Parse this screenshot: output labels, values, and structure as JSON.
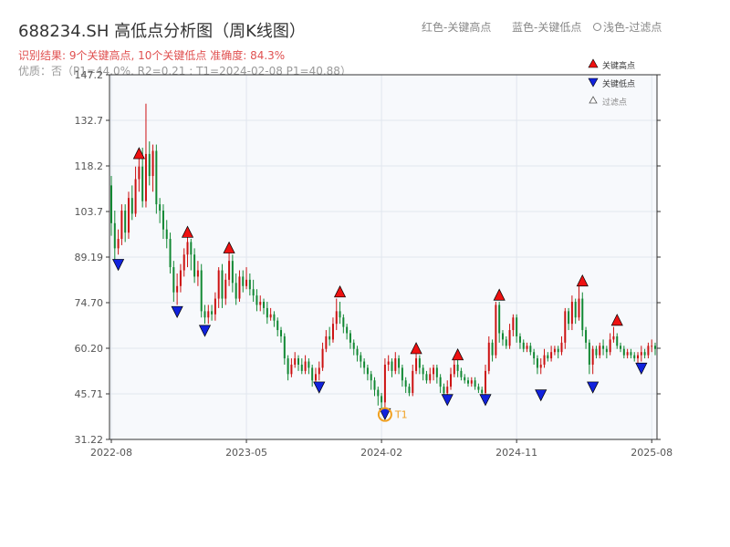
{
  "header": {
    "title": "688234.SH 高低点分析图（周K线图）",
    "legend_red": "红色-关键高点",
    "legend_blue": "蓝色-关键低点",
    "legend_light": "浅色-过滤点",
    "result_line": "识别结果: 9个关键高点, 10个关键低点   准确度: 84.3%",
    "quality_line": "优质：否（P1=44.0%, R2=0.21 ; T1=2024-02-08 P1=40.88）"
  },
  "colors": {
    "up": "#cc1111",
    "down": "#118833",
    "high_marker": "#ee1111",
    "low_marker": "#1122dd",
    "t1": "#f0a020",
    "plot_bg": "#f7f9fc",
    "grid": "#e1e6ee",
    "axis": "#333333"
  },
  "chart_data": {
    "type": "candlestick",
    "y_ticks": [
      "31.22",
      "45.71",
      "60.20",
      "74.70",
      "89.19",
      "103.7",
      "118.2",
      "132.7",
      "147.2"
    ],
    "x_ticks": [
      "2022-08",
      "2023-05",
      "2024-02",
      "2024-11",
      "2025-08"
    ],
    "ylim": [
      31.22,
      147.2
    ],
    "xlim_weeks": [
      0,
      157
    ],
    "legend": {
      "high": "关键高点",
      "low": "关键低点",
      "filtered": "过滤点"
    },
    "t1_label": "T1",
    "t1": {
      "week": 79,
      "value": 40.88
    },
    "key_highs": [
      {
        "week": 8,
        "value": 120.5
      },
      {
        "week": 22,
        "value": 95.5
      },
      {
        "week": 34,
        "value": 90.5
      },
      {
        "week": 66,
        "value": 76.5
      },
      {
        "week": 88,
        "value": 58.5
      },
      {
        "week": 100,
        "value": 56.5
      },
      {
        "week": 112,
        "value": 75.5
      },
      {
        "week": 136,
        "value": 80.0
      },
      {
        "week": 146,
        "value": 67.5
      }
    ],
    "key_lows": [
      {
        "week": 2,
        "value": 88.5
      },
      {
        "week": 19,
        "value": 73.5
      },
      {
        "week": 27,
        "value": 67.5
      },
      {
        "week": 60,
        "value": 49.5
      },
      {
        "week": 79,
        "value": 41.0
      },
      {
        "week": 97,
        "value": 45.5
      },
      {
        "week": 108,
        "value": 45.5
      },
      {
        "week": 124,
        "value": 47.0
      },
      {
        "week": 139,
        "value": 49.5
      },
      {
        "week": 153,
        "value": 55.5
      }
    ],
    "candles": [
      [
        0,
        112,
        100,
        115,
        96
      ],
      [
        1,
        100,
        92,
        104,
        88
      ],
      [
        2,
        92,
        95,
        98,
        90
      ],
      [
        3,
        95,
        104,
        106,
        93
      ],
      [
        4,
        104,
        97,
        106,
        94
      ],
      [
        5,
        97,
        108,
        110,
        95
      ],
      [
        6,
        108,
        103,
        112,
        101
      ],
      [
        7,
        103,
        114,
        118,
        102
      ],
      [
        8,
        114,
        118,
        121,
        110
      ],
      [
        9,
        118,
        107,
        124,
        105
      ],
      [
        10,
        107,
        122,
        138,
        105
      ],
      [
        11,
        122,
        115,
        126,
        112
      ],
      [
        12,
        115,
        123,
        125,
        110
      ],
      [
        13,
        123,
        106,
        125,
        103
      ],
      [
        14,
        106,
        104,
        108,
        100
      ],
      [
        15,
        104,
        98,
        106,
        95
      ],
      [
        16,
        98,
        95,
        101,
        92
      ],
      [
        17,
        95,
        86,
        97,
        84
      ],
      [
        18,
        86,
        78,
        88,
        75
      ],
      [
        19,
        78,
        80,
        84,
        74
      ],
      [
        20,
        80,
        85,
        87,
        78
      ],
      [
        21,
        85,
        90,
        92,
        83
      ],
      [
        22,
        90,
        94,
        96,
        86
      ],
      [
        23,
        94,
        90,
        95,
        85
      ],
      [
        24,
        90,
        83,
        92,
        81
      ],
      [
        25,
        83,
        85,
        88,
        80
      ],
      [
        26,
        85,
        72,
        87,
        70
      ],
      [
        27,
        72,
        70,
        74,
        68
      ],
      [
        28,
        70,
        72,
        74,
        68
      ],
      [
        29,
        72,
        71,
        74,
        69
      ],
      [
        30,
        71,
        76,
        78,
        69
      ],
      [
        31,
        76,
        85,
        86,
        73
      ],
      [
        32,
        85,
        76,
        87,
        73
      ],
      [
        33,
        76,
        82,
        84,
        74
      ],
      [
        34,
        82,
        88,
        91,
        80
      ],
      [
        35,
        88,
        81,
        90,
        78
      ],
      [
        36,
        81,
        76,
        84,
        74
      ],
      [
        37,
        76,
        83,
        85,
        75
      ],
      [
        38,
        83,
        80,
        85,
        78
      ],
      [
        39,
        80,
        82,
        86,
        79
      ],
      [
        40,
        82,
        79,
        84,
        77
      ],
      [
        41,
        79,
        77,
        82,
        75
      ],
      [
        42,
        77,
        74,
        79,
        72
      ],
      [
        43,
        74,
        75,
        77,
        72
      ],
      [
        44,
        75,
        73,
        76,
        71
      ],
      [
        45,
        73,
        70,
        75,
        68
      ],
      [
        46,
        70,
        71,
        73,
        69
      ],
      [
        47,
        71,
        69,
        72,
        67
      ],
      [
        48,
        69,
        66,
        70,
        64
      ],
      [
        49,
        66,
        64,
        67,
        62
      ],
      [
        50,
        64,
        57,
        65,
        55
      ],
      [
        51,
        57,
        52,
        58,
        50
      ],
      [
        52,
        52,
        55,
        57,
        51
      ],
      [
        53,
        55,
        57,
        59,
        54
      ],
      [
        54,
        57,
        55,
        58,
        53
      ],
      [
        55,
        55,
        53,
        57,
        52
      ],
      [
        56,
        53,
        56,
        58,
        52
      ],
      [
        57,
        56,
        54,
        57,
        52
      ],
      [
        58,
        54,
        50,
        55,
        48
      ],
      [
        59,
        50,
        52,
        54,
        49
      ],
      [
        60,
        52,
        54,
        56,
        50
      ],
      [
        61,
        54,
        60,
        62,
        53
      ],
      [
        62,
        60,
        64,
        66,
        59
      ],
      [
        63,
        64,
        63,
        67,
        61
      ],
      [
        64,
        63,
        68,
        70,
        62
      ],
      [
        65,
        68,
        72,
        76,
        66
      ],
      [
        66,
        72,
        70,
        75,
        68
      ],
      [
        67,
        70,
        67,
        71,
        65
      ],
      [
        68,
        67,
        65,
        68,
        63
      ],
      [
        69,
        65,
        62,
        66,
        60
      ],
      [
        70,
        62,
        60,
        63,
        58
      ],
      [
        71,
        60,
        58,
        61,
        56
      ],
      [
        72,
        58,
        56,
        59,
        54
      ],
      [
        73,
        56,
        54,
        57,
        52
      ],
      [
        74,
        54,
        52,
        55,
        50
      ],
      [
        75,
        52,
        50,
        53,
        47
      ],
      [
        76,
        50,
        47,
        51,
        45
      ],
      [
        77,
        47,
        45,
        48,
        42
      ],
      [
        78,
        45,
        43,
        46,
        41
      ],
      [
        79,
        43,
        55,
        57,
        41
      ],
      [
        80,
        55,
        56,
        58,
        53
      ],
      [
        81,
        56,
        53,
        57,
        51
      ],
      [
        82,
        53,
        57,
        59,
        52
      ],
      [
        83,
        57,
        54,
        58,
        52
      ],
      [
        84,
        54,
        50,
        55,
        48
      ],
      [
        85,
        50,
        48,
        51,
        46
      ],
      [
        86,
        48,
        46,
        49,
        45
      ],
      [
        87,
        46,
        53,
        55,
        45
      ],
      [
        88,
        53,
        57,
        59,
        52
      ],
      [
        89,
        57,
        54,
        58,
        52
      ],
      [
        90,
        54,
        52,
        55,
        50
      ],
      [
        91,
        52,
        50,
        53,
        49
      ],
      [
        92,
        50,
        52,
        54,
        49
      ],
      [
        93,
        52,
        54,
        55,
        50
      ],
      [
        94,
        54,
        51,
        55,
        49
      ],
      [
        95,
        51,
        48,
        52,
        46
      ],
      [
        96,
        48,
        46,
        49,
        45
      ],
      [
        97,
        46,
        48,
        50,
        45
      ],
      [
        98,
        48,
        52,
        54,
        47
      ],
      [
        99,
        52,
        55,
        57,
        51
      ],
      [
        100,
        55,
        53,
        57,
        51
      ],
      [
        101,
        53,
        51,
        54,
        50
      ],
      [
        102,
        51,
        50,
        52,
        49
      ],
      [
        103,
        50,
        49,
        51,
        48
      ],
      [
        104,
        49,
        50,
        51,
        48
      ],
      [
        105,
        50,
        48,
        51,
        47
      ],
      [
        106,
        48,
        47,
        49,
        46
      ],
      [
        107,
        47,
        46,
        48,
        45
      ],
      [
        108,
        46,
        53,
        55,
        45
      ],
      [
        109,
        53,
        62,
        64,
        52
      ],
      [
        110,
        62,
        58,
        63,
        56
      ],
      [
        111,
        58,
        74,
        75,
        57
      ],
      [
        112,
        74,
        65,
        75,
        62
      ],
      [
        113,
        65,
        63,
        66,
        61
      ],
      [
        114,
        63,
        61,
        64,
        60
      ],
      [
        115,
        61,
        66,
        68,
        60
      ],
      [
        116,
        66,
        70,
        71,
        64
      ],
      [
        117,
        70,
        64,
        71,
        62
      ],
      [
        118,
        64,
        62,
        65,
        60
      ],
      [
        119,
        62,
        60,
        63,
        59
      ],
      [
        120,
        60,
        61,
        62,
        59
      ],
      [
        121,
        61,
        59,
        62,
        58
      ],
      [
        122,
        59,
        57,
        60,
        55
      ],
      [
        123,
        57,
        54,
        58,
        52
      ],
      [
        124,
        54,
        55,
        57,
        52
      ],
      [
        125,
        55,
        58,
        60,
        54
      ],
      [
        126,
        58,
        57,
        59,
        56
      ],
      [
        127,
        57,
        59,
        61,
        56
      ],
      [
        128,
        59,
        60,
        61,
        58
      ],
      [
        129,
        60,
        59,
        61,
        57
      ],
      [
        130,
        59,
        62,
        64,
        58
      ],
      [
        131,
        62,
        72,
        73,
        60
      ],
      [
        132,
        72,
        68,
        73,
        66
      ],
      [
        133,
        68,
        75,
        77,
        66
      ],
      [
        134,
        75,
        70,
        76,
        68
      ],
      [
        135,
        70,
        76,
        80,
        69
      ],
      [
        136,
        76,
        66,
        78,
        64
      ],
      [
        137,
        66,
        62,
        67,
        60
      ],
      [
        138,
        62,
        55,
        63,
        52
      ],
      [
        139,
        55,
        60,
        61,
        52
      ],
      [
        140,
        60,
        58,
        61,
        57
      ],
      [
        141,
        58,
        61,
        62,
        57
      ],
      [
        142,
        61,
        60,
        63,
        58
      ],
      [
        143,
        60,
        59,
        61,
        57
      ],
      [
        144,
        59,
        63,
        65,
        58
      ],
      [
        145,
        63,
        64,
        67,
        62
      ],
      [
        146,
        64,
        61,
        65,
        60
      ],
      [
        147,
        61,
        60,
        62,
        59
      ],
      [
        148,
        60,
        58,
        61,
        57
      ],
      [
        149,
        58,
        59,
        60,
        57
      ],
      [
        150,
        59,
        58,
        60,
        57
      ],
      [
        151,
        58,
        57,
        59,
        56
      ],
      [
        152,
        57,
        58,
        59,
        55
      ],
      [
        153,
        58,
        59,
        61,
        56
      ],
      [
        154,
        59,
        58,
        60,
        57
      ],
      [
        155,
        58,
        61,
        62,
        57
      ],
      [
        156,
        61,
        61,
        63,
        59
      ],
      [
        157,
        61,
        60,
        62,
        58
      ]
    ]
  }
}
